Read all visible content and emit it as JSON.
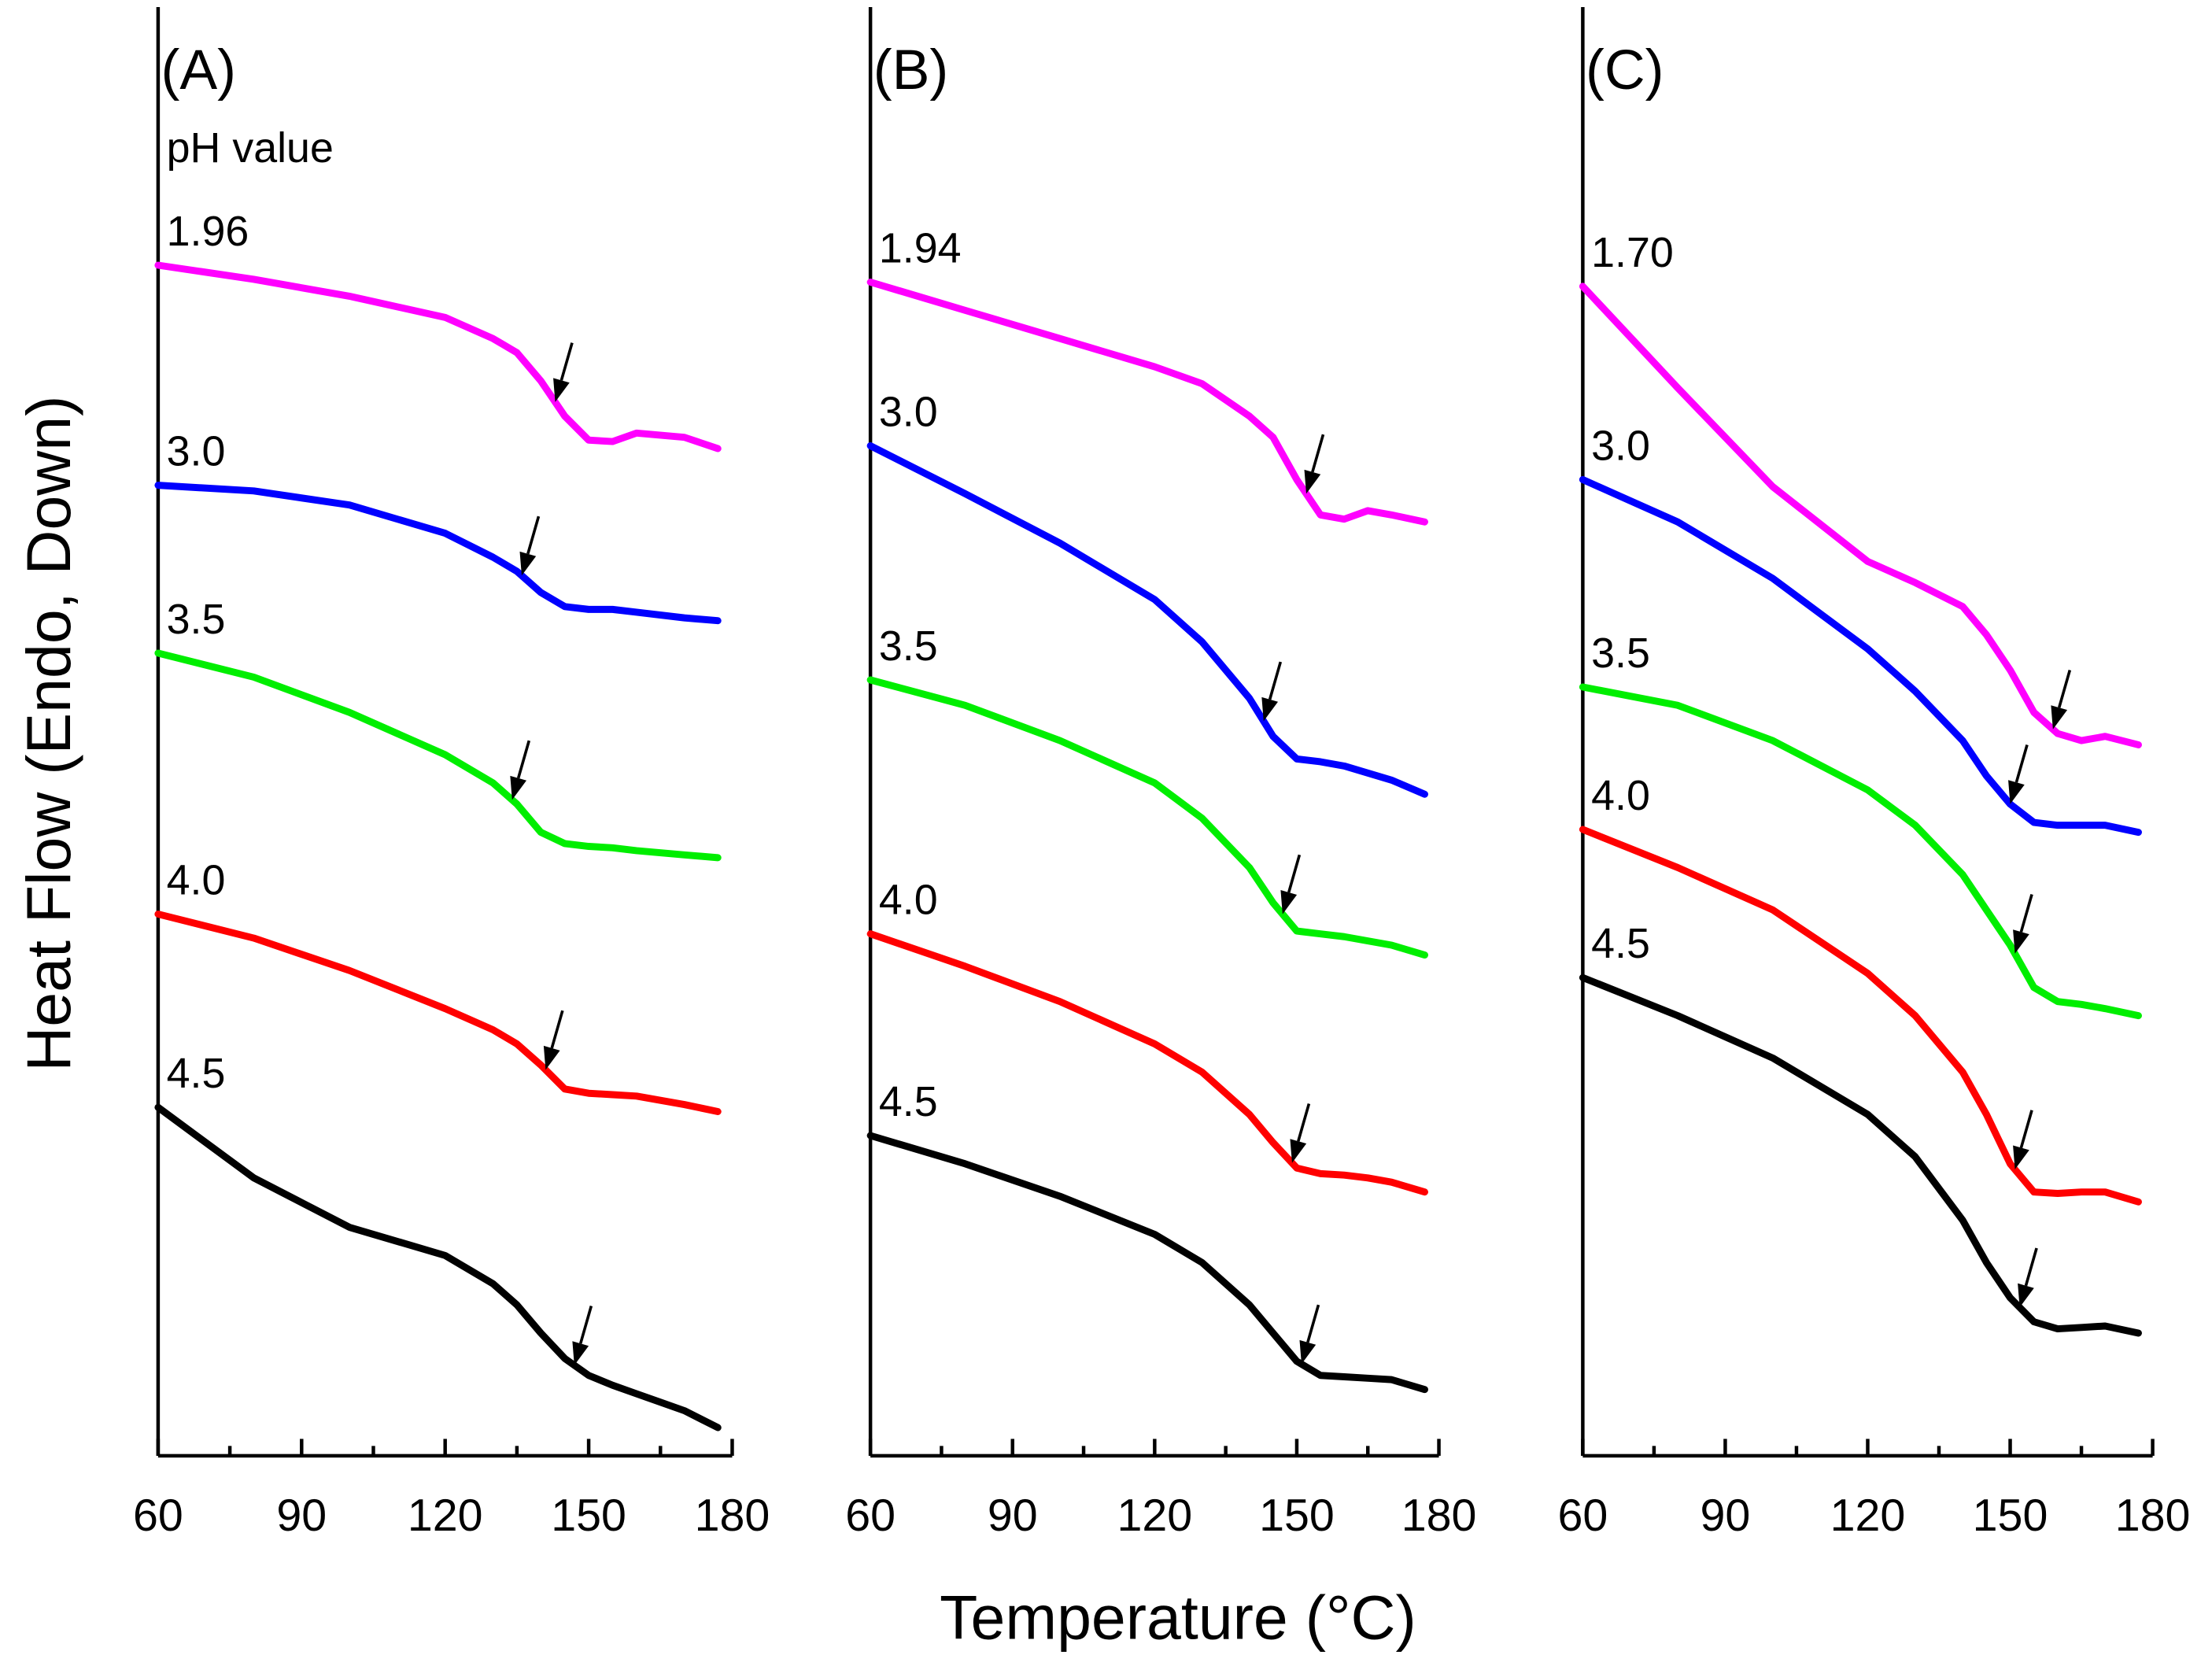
{
  "xlabel": "Temperature (°C)",
  "ylabel": "Heat Flow (Endo, Down)",
  "chart_data": [
    {
      "type": "line",
      "title": "(A)",
      "legend_title": "pH value",
      "xlim": [
        60,
        180
      ],
      "xticks": [
        60,
        90,
        120,
        150,
        180
      ],
      "xminor": [
        75,
        105,
        135,
        165
      ],
      "ylim": [
        0,
        1027
      ],
      "x": [
        60,
        80,
        100,
        120,
        130,
        135,
        140,
        145,
        150,
        155,
        160,
        170,
        177
      ],
      "series": [
        {
          "name": "1.96",
          "color": "#ff00ff",
          "arrow_x": 143,
          "values": [
            844,
            834,
            822,
            807,
            792,
            782,
            762,
            737,
            720,
            719,
            725,
            722,
            714
          ]
        },
        {
          "name": "3.0",
          "color": "#0000ff",
          "arrow_x": 136,
          "values": [
            688,
            684,
            674,
            654,
            637,
            627,
            612,
            602,
            600,
            600,
            598,
            594,
            592
          ]
        },
        {
          "name": "3.5",
          "color": "#00ee00",
          "arrow_x": 134,
          "values": [
            569,
            552,
            527,
            497,
            477,
            462,
            442,
            434,
            432,
            431,
            429,
            426,
            424
          ]
        },
        {
          "name": "4.0",
          "color": "#ff0000",
          "arrow_x": 141,
          "values": [
            384,
            367,
            344,
            317,
            302,
            292,
            277,
            260,
            257,
            256,
            255,
            249,
            244
          ]
        },
        {
          "name": "4.5",
          "color": "#000000",
          "arrow_x": 147,
          "values": [
            247,
            197,
            162,
            142,
            122,
            107,
            87,
            69,
            57,
            50,
            44,
            32,
            20
          ]
        }
      ]
    },
    {
      "type": "line",
      "title": "(B)",
      "xlim": [
        60,
        180
      ],
      "xticks": [
        60,
        90,
        120,
        150,
        180
      ],
      "xminor": [
        75,
        105,
        135,
        165
      ],
      "ylim": [
        0,
        1027
      ],
      "x": [
        60,
        80,
        100,
        120,
        130,
        140,
        145,
        150,
        155,
        160,
        165,
        170,
        177
      ],
      "series": [
        {
          "name": "1.94",
          "color": "#ff00ff",
          "arrow_x": 152,
          "values": [
            832,
            812,
            792,
            772,
            760,
            737,
            722,
            692,
            667,
            664,
            670,
            667,
            662
          ]
        },
        {
          "name": "3.0",
          "color": "#0000ff",
          "arrow_x": 143,
          "values": [
            716,
            682,
            647,
            607,
            577,
            537,
            510,
            494,
            492,
            489,
            484,
            479,
            469
          ]
        },
        {
          "name": "3.5",
          "color": "#00ee00",
          "arrow_x": 147,
          "values": [
            550,
            532,
            507,
            477,
            452,
            417,
            392,
            372,
            370,
            368,
            365,
            362,
            355
          ]
        },
        {
          "name": "4.0",
          "color": "#ff0000",
          "arrow_x": 149,
          "values": [
            370,
            347,
            322,
            292,
            272,
            242,
            222,
            204,
            200,
            199,
            197,
            194,
            187
          ]
        },
        {
          "name": "4.5",
          "color": "#000000",
          "arrow_x": 151,
          "values": [
            227,
            207,
            184,
            157,
            137,
            107,
            87,
            67,
            57,
            56,
            55,
            54,
            47
          ]
        }
      ]
    },
    {
      "type": "line",
      "title": "(C)",
      "xlim": [
        60,
        180
      ],
      "xticks": [
        60,
        90,
        120,
        150,
        180
      ],
      "xminor": [
        75,
        105,
        135,
        165
      ],
      "ylim": [
        0,
        1027
      ],
      "x": [
        60,
        80,
        100,
        120,
        130,
        140,
        145,
        150,
        155,
        160,
        165,
        170,
        177
      ],
      "series": [
        {
          "name": "1.70",
          "color": "#ff00ff",
          "arrow_x": 159,
          "values": [
            829,
            757,
            687,
            634,
            619,
            602,
            582,
            557,
            527,
            512,
            507,
            510,
            504
          ]
        },
        {
          "name": "3.0",
          "color": "#0000ff",
          "arrow_x": 150,
          "values": [
            692,
            662,
            622,
            572,
            542,
            507,
            482,
            462,
            449,
            447,
            447,
            447,
            442
          ]
        },
        {
          "name": "3.5",
          "color": "#00ee00",
          "arrow_x": 151,
          "values": [
            545,
            532,
            507,
            472,
            447,
            412,
            387,
            362,
            332,
            322,
            320,
            317,
            312
          ]
        },
        {
          "name": "4.0",
          "color": "#ff0000",
          "arrow_x": 151,
          "values": [
            444,
            417,
            387,
            342,
            312,
            272,
            242,
            207,
            187,
            186,
            187,
            187,
            180
          ]
        },
        {
          "name": "4.5",
          "color": "#000000",
          "arrow_x": 152,
          "values": [
            339,
            312,
            282,
            242,
            212,
            167,
            137,
            112,
            95,
            90,
            91,
            92,
            87
          ]
        }
      ]
    }
  ]
}
